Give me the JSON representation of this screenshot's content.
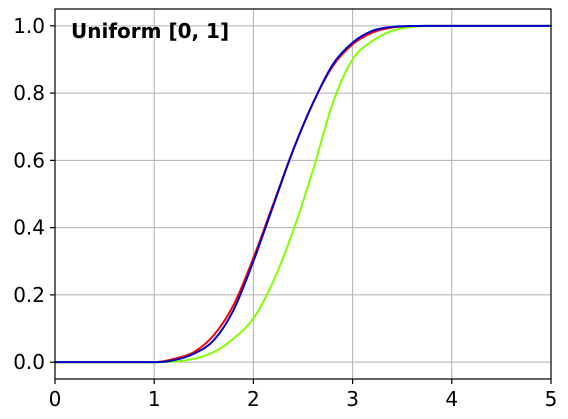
{
  "chart_data": {
    "type": "line",
    "title": "Uniform [0, 1]",
    "xlabel": "",
    "ylabel": "",
    "xlim": [
      0,
      5
    ],
    "ylim": [
      -0.05,
      1.05
    ],
    "x_ticks": [
      "0",
      "1",
      "2",
      "3",
      "4",
      "5"
    ],
    "y_ticks": [
      "0.0",
      "0.2",
      "0.4",
      "0.6",
      "0.8",
      "1.0"
    ],
    "grid": true,
    "legend": "none",
    "series": [
      {
        "color": "#ff0000",
        "x": [
          0,
          0.5,
          1.0,
          1.2,
          1.4,
          1.6,
          1.8,
          2.0,
          2.2,
          2.4,
          2.6,
          2.8,
          3.0,
          3.2,
          3.4,
          3.6,
          3.8,
          4.0,
          4.5,
          5.0
        ],
        "y": [
          0,
          0,
          0.0,
          0.01,
          0.03,
          0.08,
          0.17,
          0.31,
          0.47,
          0.63,
          0.77,
          0.88,
          0.945,
          0.98,
          0.995,
          0.999,
          1.0,
          1.0,
          1.0,
          1.0
        ]
      },
      {
        "color": "#80ff00",
        "x": [
          0,
          0.5,
          1.0,
          1.2,
          1.4,
          1.6,
          1.8,
          2.0,
          2.2,
          2.4,
          2.6,
          2.8,
          3.0,
          3.2,
          3.4,
          3.6,
          3.8,
          4.0,
          4.5,
          5.0
        ],
        "y": [
          0,
          0,
          0.0,
          0.002,
          0.01,
          0.03,
          0.07,
          0.13,
          0.24,
          0.39,
          0.57,
          0.77,
          0.9,
          0.955,
          0.985,
          0.997,
          1.0,
          1.0,
          1.0,
          1.0
        ]
      },
      {
        "color": "#0000cc",
        "x": [
          0,
          0.5,
          1.0,
          1.2,
          1.4,
          1.6,
          1.8,
          2.0,
          2.2,
          2.4,
          2.6,
          2.8,
          3.0,
          3.2,
          3.4,
          3.6,
          3.8,
          4.0,
          4.5,
          5.0
        ],
        "y": [
          0,
          0,
          0.0,
          0.006,
          0.025,
          0.065,
          0.155,
          0.3,
          0.465,
          0.63,
          0.77,
          0.885,
          0.95,
          0.985,
          0.997,
          0.9995,
          1.0,
          1.0,
          1.0,
          1.0
        ]
      }
    ]
  }
}
